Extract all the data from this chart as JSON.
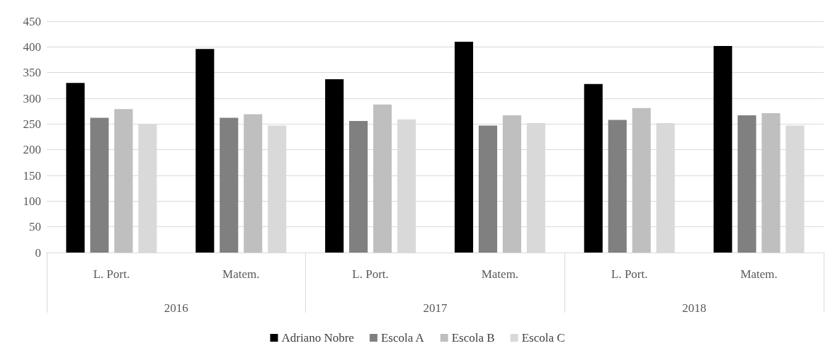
{
  "chart_data": {
    "type": "bar",
    "categories": [
      "L. Port.",
      "Matem.",
      "L. Port.",
      "Matem.",
      "L. Port.",
      "Matem."
    ],
    "series": [
      {
        "name": "Adriano Nobre",
        "color": "#000000",
        "values": [
          330,
          396,
          337,
          410,
          328,
          402
        ]
      },
      {
        "name": "Escola A",
        "color": "#808080",
        "values": [
          262,
          262,
          256,
          247,
          258,
          267
        ]
      },
      {
        "name": "Escola B",
        "color": "#bfbfbf",
        "values": [
          279,
          269,
          288,
          267,
          281,
          271
        ]
      },
      {
        "name": "Escola C",
        "color": "#d9d9d9",
        "values": [
          250,
          247,
          259,
          252,
          252,
          247
        ]
      }
    ],
    "annotations": [
      "2016",
      "2017",
      "2018"
    ],
    "ylim": [
      0,
      450
    ],
    "yticks": [
      0,
      50,
      100,
      150,
      200,
      250,
      300,
      350,
      400,
      450
    ],
    "grid": "y",
    "legend": "bottom"
  }
}
